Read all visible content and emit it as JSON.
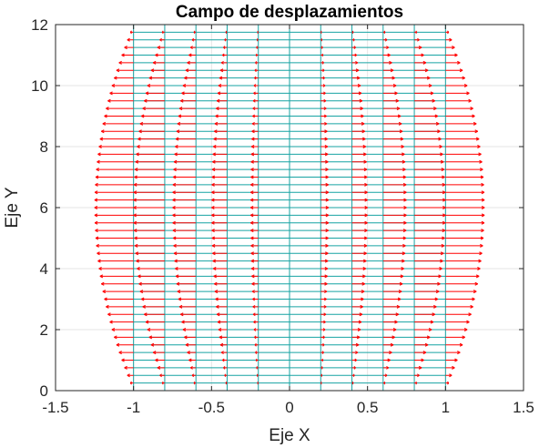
{
  "chart_data": {
    "type": "quiver",
    "title": "Campo de desplazamientos",
    "xlabel": "Eje X",
    "ylabel": "Eje Y",
    "xlim": [
      -1.5,
      1.5
    ],
    "ylim": [
      0,
      12
    ],
    "xticks": [
      "-1.5",
      "-1",
      "-0.5",
      "0",
      "0.5",
      "1",
      "1.5"
    ],
    "yticks": [
      "0",
      "2",
      "4",
      "6",
      "8",
      "10",
      "12"
    ],
    "grid": true,
    "mesh": {
      "color": "#17a3a3",
      "x_nodes": [
        -1,
        -0.8,
        -0.6,
        -0.4,
        -0.2,
        0,
        0.2,
        0.4,
        0.6,
        0.8,
        1
      ],
      "y_spacing": 0.25,
      "y_range": [
        0,
        12
      ]
    },
    "vectors": {
      "color": "#ff0000",
      "description_of_field": "horizontal displacements growing with |x|, maximum near y = 6",
      "u_at_x1_y6": 0.25,
      "u_at_x1_y0": 0.0,
      "u_profile": "u = 0.25 * x * (1 - ((y - 6) / 6)^2)"
    }
  }
}
